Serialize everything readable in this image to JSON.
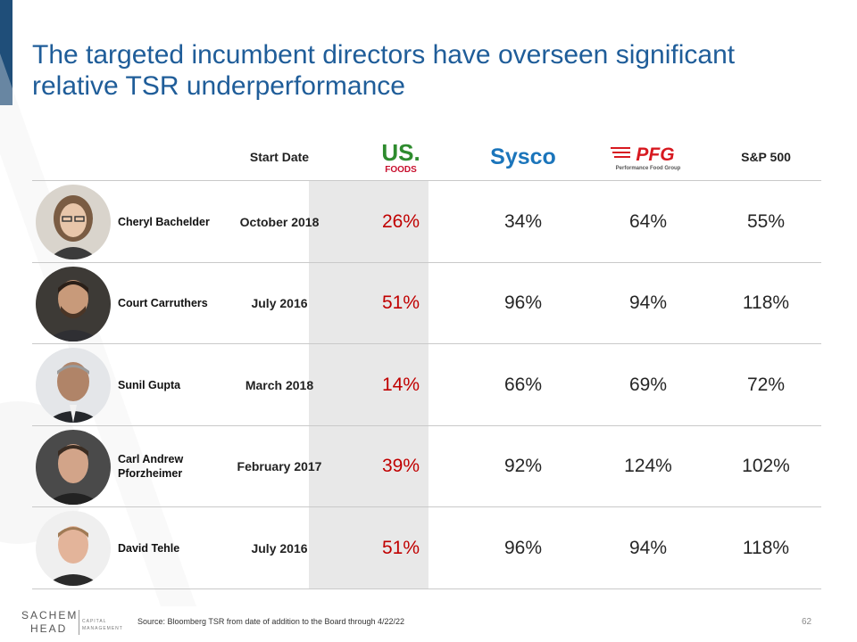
{
  "slide": {
    "title": "The targeted incumbent directors have overseen significant relative TSR underperformance",
    "source": "Source: Bloomberg TSR from date of addition to the Board through 4/22/22",
    "page_number": "62"
  },
  "footer_logo": {
    "line1": "SACHEM",
    "line2": "HEAD",
    "sub1": "CAPITAL",
    "sub2": "MANAGEMENT"
  },
  "headers": {
    "start_date": "Start Date",
    "usfoods_logo": {
      "line1": "US.",
      "line2": "FOODS"
    },
    "sysco_logo": "Sysco",
    "pfg_logo": {
      "mark": "PFG",
      "sub": "Performance Food Group"
    },
    "sp500": "S&P 500"
  },
  "rows": [
    {
      "name": "Cheryl Bachelder",
      "start_date": "October 2018",
      "us_foods": "26%",
      "sysco": "34%",
      "pfg": "64%",
      "sp500": "55%"
    },
    {
      "name": "Court Carruthers",
      "start_date": "July 2016",
      "us_foods": "51%",
      "sysco": "96%",
      "pfg": "94%",
      "sp500": "118%"
    },
    {
      "name": "Sunil  Gupta",
      "start_date": "March 2018",
      "us_foods": "14%",
      "sysco": "66%",
      "pfg": "69%",
      "sp500": "72%"
    },
    {
      "name": "Carl Andrew Pforzheimer",
      "start_date": "February 2017",
      "us_foods": "39%",
      "sysco": "92%",
      "pfg": "124%",
      "sp500": "102%"
    },
    {
      "name": "David Tehle",
      "start_date": "July 2016",
      "us_foods": "51%",
      "sysco": "96%",
      "pfg": "94%",
      "sp500": "118%"
    }
  ],
  "colors": {
    "title": "#1f5d99",
    "accent_bar": "#1f4e79",
    "highlight": "#c00000",
    "us_foods_green": "#2e8b2e",
    "us_foods_red": "#c8102e",
    "sysco_blue": "#1b75bb",
    "pfg_red": "#d71920"
  }
}
